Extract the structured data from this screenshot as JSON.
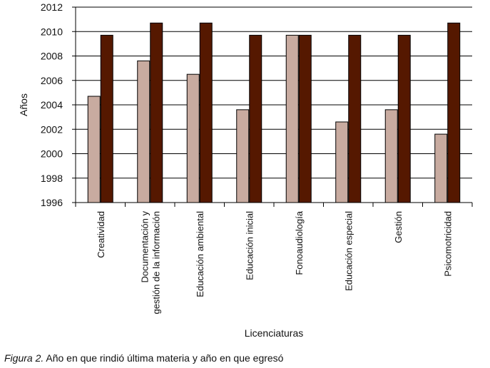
{
  "chart_data": {
    "type": "bar",
    "title": "",
    "xlabel": "Licenciaturas",
    "ylabel": "Años",
    "ylim": [
      1996,
      2012
    ],
    "yticks": [
      1996,
      1998,
      2000,
      2002,
      2004,
      2006,
      2008,
      2010,
      2012
    ],
    "grid": true,
    "categories": [
      [
        "Creatividad"
      ],
      [
        "Documentación y",
        "gestión de la información"
      ],
      [
        "Educación ambiental"
      ],
      [
        "Educación inicial"
      ],
      [
        "Fonoaudiología"
      ],
      [
        "Educación especial"
      ],
      [
        "Gestión"
      ],
      [
        "Psicomotricidad"
      ]
    ],
    "series": [
      {
        "color": "#c8aba0",
        "values": [
          2004.7,
          2007.6,
          2006.5,
          2003.6,
          2009.7,
          2002.6,
          2003.6,
          2001.6
        ]
      },
      {
        "color": "#551800",
        "values": [
          2009.7,
          2010.7,
          2010.7,
          2009.7,
          2009.7,
          2009.7,
          2009.7,
          2010.7
        ]
      }
    ]
  },
  "caption": {
    "figure": "Figura 2.",
    "text": " Año en que rindió última materia y año en que egresó"
  }
}
